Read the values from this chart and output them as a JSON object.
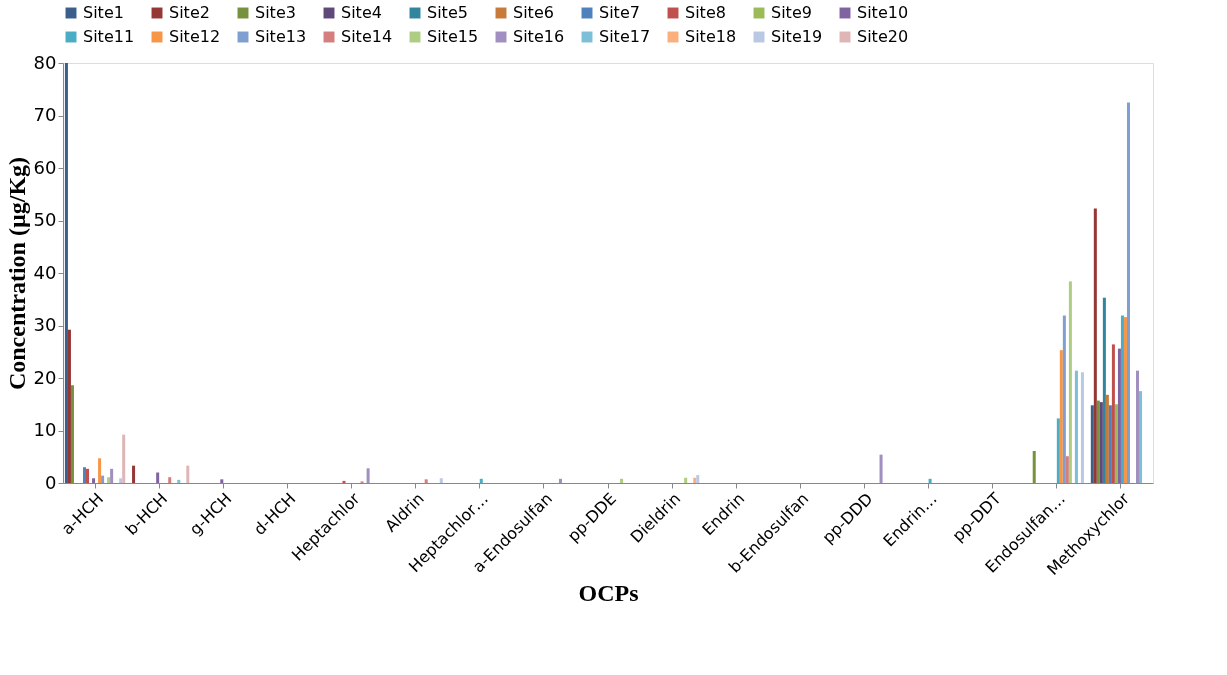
{
  "chart_data": {
    "type": "bar",
    "xlabel": "OCPs",
    "ylabel": "Concentration (µg/Kg)",
    "categories": [
      "a-HCH",
      "b-HCH",
      "g-HCH",
      "d-HCH",
      "Heptachlor",
      "Aldrin",
      "Heptachlor…",
      "a-Endosulfan",
      "pp-DDE",
      "Dieldrin",
      "Endrin",
      "b-Endosulfan",
      "pp-DDD",
      "Endrin…",
      "pp-DDT",
      "Endosulfan…",
      "Methoxychlor"
    ],
    "series": [
      {
        "name": "Site1",
        "color": "#3a5f8b",
        "values": [
          80,
          0,
          0,
          0,
          0,
          0,
          0,
          0,
          0,
          0,
          0,
          0,
          0,
          0,
          0,
          0,
          14.8
        ]
      },
      {
        "name": "Site2",
        "color": "#953735",
        "values": [
          29.2,
          3.3,
          0,
          0,
          0,
          0,
          0,
          0,
          0,
          0,
          0,
          0,
          0,
          0,
          0,
          0,
          52.3
        ]
      },
      {
        "name": "Site3",
        "color": "#76923c",
        "values": [
          18.6,
          0,
          0,
          0,
          0,
          0,
          0,
          0,
          0,
          0,
          0,
          0,
          0,
          0,
          0,
          6.1,
          15.7
        ]
      },
      {
        "name": "Site4",
        "color": "#5f497a",
        "values": [
          0,
          0,
          0,
          0,
          0,
          0,
          0,
          0,
          0,
          0,
          0,
          0,
          0,
          0,
          0,
          0,
          15.4
        ]
      },
      {
        "name": "Site5",
        "color": "#31859c",
        "values": [
          0,
          0,
          0,
          0,
          0,
          0,
          0,
          0,
          0,
          0,
          0,
          0,
          0,
          0,
          0,
          0,
          35.3
        ]
      },
      {
        "name": "Site6",
        "color": "#c77b3a",
        "values": [
          0,
          0,
          0,
          0,
          0,
          0,
          0,
          0,
          0,
          0,
          0,
          0,
          0,
          0,
          0,
          0,
          16.8
        ]
      },
      {
        "name": "Site7",
        "color": "#4f81bd",
        "values": [
          3.0,
          0,
          0,
          0,
          0,
          0,
          0,
          0,
          0,
          0,
          0,
          0,
          0,
          0,
          0,
          0,
          14.8
        ]
      },
      {
        "name": "Site8",
        "color": "#c0504d",
        "values": [
          2.7,
          0,
          0,
          0,
          0.4,
          0,
          0,
          0,
          0,
          0,
          0,
          0,
          0,
          0,
          0,
          0,
          26.4
        ]
      },
      {
        "name": "Site9",
        "color": "#9bbb59",
        "values": [
          0,
          0,
          0,
          0,
          0,
          0,
          0,
          0,
          0,
          0,
          0,
          0,
          0,
          0,
          0,
          0,
          15.0
        ]
      },
      {
        "name": "Site10",
        "color": "#8064a2",
        "values": [
          0.9,
          2.0,
          0.7,
          0,
          0,
          0,
          0,
          0,
          0,
          0,
          0,
          0,
          0,
          0,
          0,
          0,
          25.6
        ]
      },
      {
        "name": "Site11",
        "color": "#4bacc6",
        "values": [
          0,
          0,
          0,
          0,
          0,
          0,
          0.8,
          0,
          0,
          0,
          0,
          0,
          0,
          0.8,
          0,
          12.3,
          31.9
        ]
      },
      {
        "name": "Site12",
        "color": "#f79646",
        "values": [
          4.7,
          0,
          0,
          0,
          0,
          0,
          0,
          0,
          0,
          0,
          0,
          0,
          0,
          0,
          0,
          25.3,
          31.6
        ]
      },
      {
        "name": "Site13",
        "color": "#7f9fd0",
        "values": [
          1.4,
          0,
          0,
          0,
          0,
          0,
          0,
          0,
          0,
          0,
          0,
          0,
          0,
          0,
          0,
          31.9,
          72.5
        ]
      },
      {
        "name": "Site14",
        "color": "#d47f7d",
        "values": [
          0,
          1.1,
          0,
          0,
          0.3,
          0.7,
          0,
          0,
          0,
          0,
          0,
          0,
          0,
          0,
          0,
          5.1,
          0
        ]
      },
      {
        "name": "Site15",
        "color": "#afcc84",
        "values": [
          1.1,
          0,
          0,
          0,
          0,
          0,
          0,
          0,
          0.8,
          1.0,
          0,
          0,
          0,
          0,
          0,
          38.4,
          0
        ]
      },
      {
        "name": "Site16",
        "color": "#a08fbf",
        "values": [
          2.7,
          0,
          0,
          0,
          2.8,
          0,
          0,
          0.8,
          0,
          0,
          0,
          0,
          5.4,
          0,
          0,
          0,
          21.4
        ]
      },
      {
        "name": "Site17",
        "color": "#7cbfd6",
        "values": [
          0,
          0.6,
          0,
          0,
          0,
          0,
          0,
          0,
          0,
          0,
          0,
          0,
          0,
          0,
          0,
          21.4,
          17.5
        ]
      },
      {
        "name": "Site18",
        "color": "#fab07d",
        "values": [
          0,
          0,
          0,
          0,
          0,
          0,
          0,
          0,
          0,
          1.0,
          0,
          0,
          0,
          0,
          0,
          0,
          0
        ]
      },
      {
        "name": "Site19",
        "color": "#b9c9e3",
        "values": [
          0.9,
          0,
          0,
          0,
          0,
          0.9,
          0,
          0,
          0,
          1.5,
          0,
          0,
          0,
          0,
          0,
          21.1,
          0
        ]
      },
      {
        "name": "Site20",
        "color": "#e0b5b5",
        "values": [
          9.2,
          3.3,
          0,
          0,
          0,
          0,
          0,
          0,
          0,
          0,
          0,
          0,
          0,
          0,
          0,
          0,
          0
        ]
      }
    ],
    "ylim": [
      0,
      80
    ],
    "yticks": [
      0,
      10,
      20,
      30,
      40,
      50,
      60,
      70,
      80
    ],
    "grid": false,
    "legend": "top"
  }
}
